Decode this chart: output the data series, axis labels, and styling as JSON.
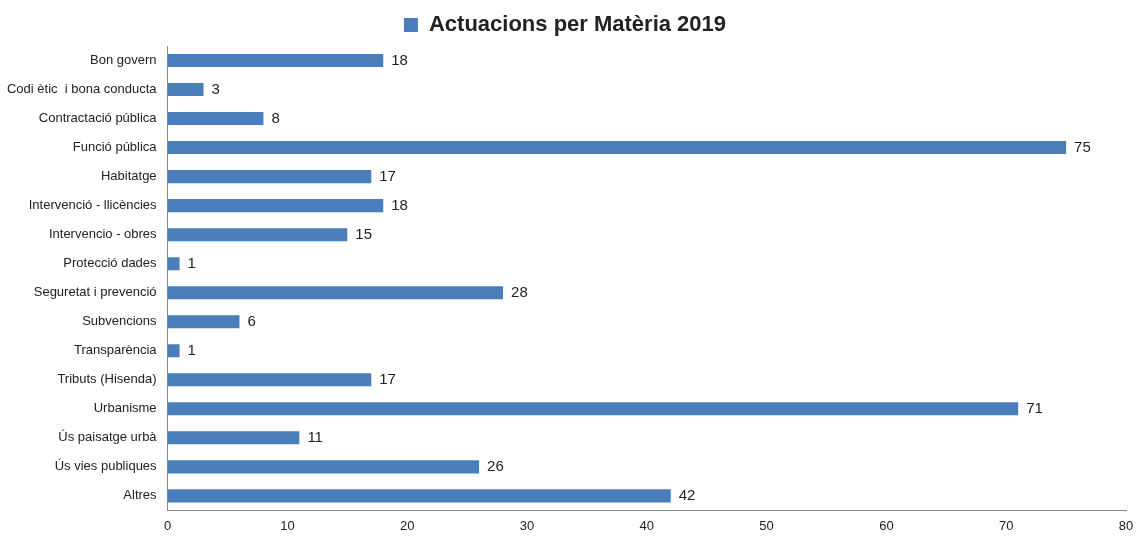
{
  "chart_data": {
    "type": "bar",
    "orientation": "horizontal",
    "categories": [
      "Bon govern",
      "Codi ètic  i bona conducta",
      "Contractació pública",
      "Funció pública",
      "Habitatge",
      "Intervenció - llicències",
      "Intervencio - obres",
      "Protecció dades",
      "Seguretat i prevenció",
      "Subvencions",
      "Transparència",
      "Tributs (Hisenda)",
      "Urbanisme",
      "Ús paisatge urbà",
      "Ús vies publiques",
      "Altres"
    ],
    "series": [
      {
        "name": "Actuacions per Matèria 2019",
        "color": "#4a7ebb",
        "values": [
          18,
          3,
          8,
          75,
          17,
          18,
          15,
          1,
          28,
          6,
          1,
          17,
          71,
          11,
          26,
          42
        ]
      }
    ],
    "xlim": [
      0,
      80
    ],
    "xticks": [
      0,
      10,
      20,
      30,
      40,
      50,
      60,
      70,
      80
    ],
    "grid": false,
    "legend": "top",
    "data_labels": true
  }
}
